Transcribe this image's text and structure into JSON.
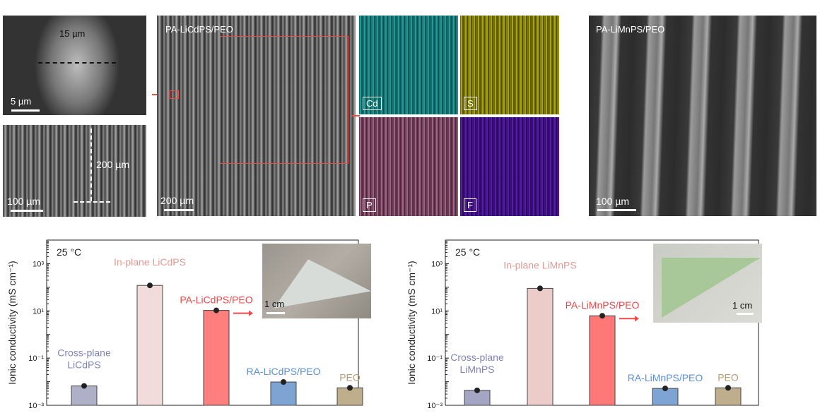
{
  "micrographs": {
    "top_left": {
      "scale": "5 µm",
      "dimension": "15 µm"
    },
    "bottom_left": {
      "scale": "100 µm",
      "dimension": "200 µm"
    },
    "center": {
      "title": "PA-LiCdPS/PEO",
      "scale": "200  µm"
    },
    "eds_maps": [
      {
        "element": "Cd",
        "color": "#1fa7a3"
      },
      {
        "element": "S",
        "color": "#b7b21a"
      },
      {
        "element": "P",
        "color": "#b0688f"
      },
      {
        "element": "F",
        "color": "#5a1fb0"
      }
    ],
    "right": {
      "title": "PA-LiMnPS/PEO",
      "scale": "100 µm"
    }
  },
  "chart_data": [
    {
      "type": "bar",
      "ylabel": "Ionic conductivity (mS cm⁻¹)",
      "yscale": "log",
      "ylim": [
        0.001,
        10000
      ],
      "yticks": [
        "10⁻³",
        "10⁻¹",
        "10¹",
        "10³"
      ],
      "annotation": "25 °C",
      "inset_scale": "1 cm",
      "categories": [
        "Cross-plane LiCdPS",
        "In-plane LiCdPS",
        "PA-LiCdPS/PEO",
        "RA-LiCdPS/PEO",
        "PEO"
      ],
      "values": [
        0.0066,
        120,
        10.5,
        0.0097,
        0.0055
      ],
      "colors": [
        "#aeb0c8",
        "#f2dcdb",
        "#ff7f7f",
        "#7ea4d4",
        "#bfae8b"
      ],
      "label_colors": [
        "#7f84b8",
        "#e19a94",
        "#f0474a",
        "#5b8fd6",
        "#b49d72"
      ]
    },
    {
      "type": "bar",
      "ylabel": "Ionic conductivity (mS cm⁻¹)",
      "yscale": "log",
      "ylim": [
        0.001,
        10000
      ],
      "yticks": [
        "10⁻³",
        "10⁻¹",
        "10¹",
        "10³"
      ],
      "annotation": "25 °C",
      "inset_scale": "1 cm",
      "categories": [
        "Cross-plane LiMnPS",
        "In-plane LiMnPS",
        "PA-LiMnPS/PEO",
        "RA-LiMnPS/PEO",
        "PEO"
      ],
      "values": [
        0.0043,
        90,
        6.2,
        0.0052,
        0.0055
      ],
      "colors": [
        "#a3a5c2",
        "#ecccc8",
        "#ff7878",
        "#7ea4d4",
        "#bfae8b"
      ],
      "label_colors": [
        "#7f84b8",
        "#e19a94",
        "#f0474a",
        "#5b8fd6",
        "#b49d72"
      ]
    }
  ]
}
